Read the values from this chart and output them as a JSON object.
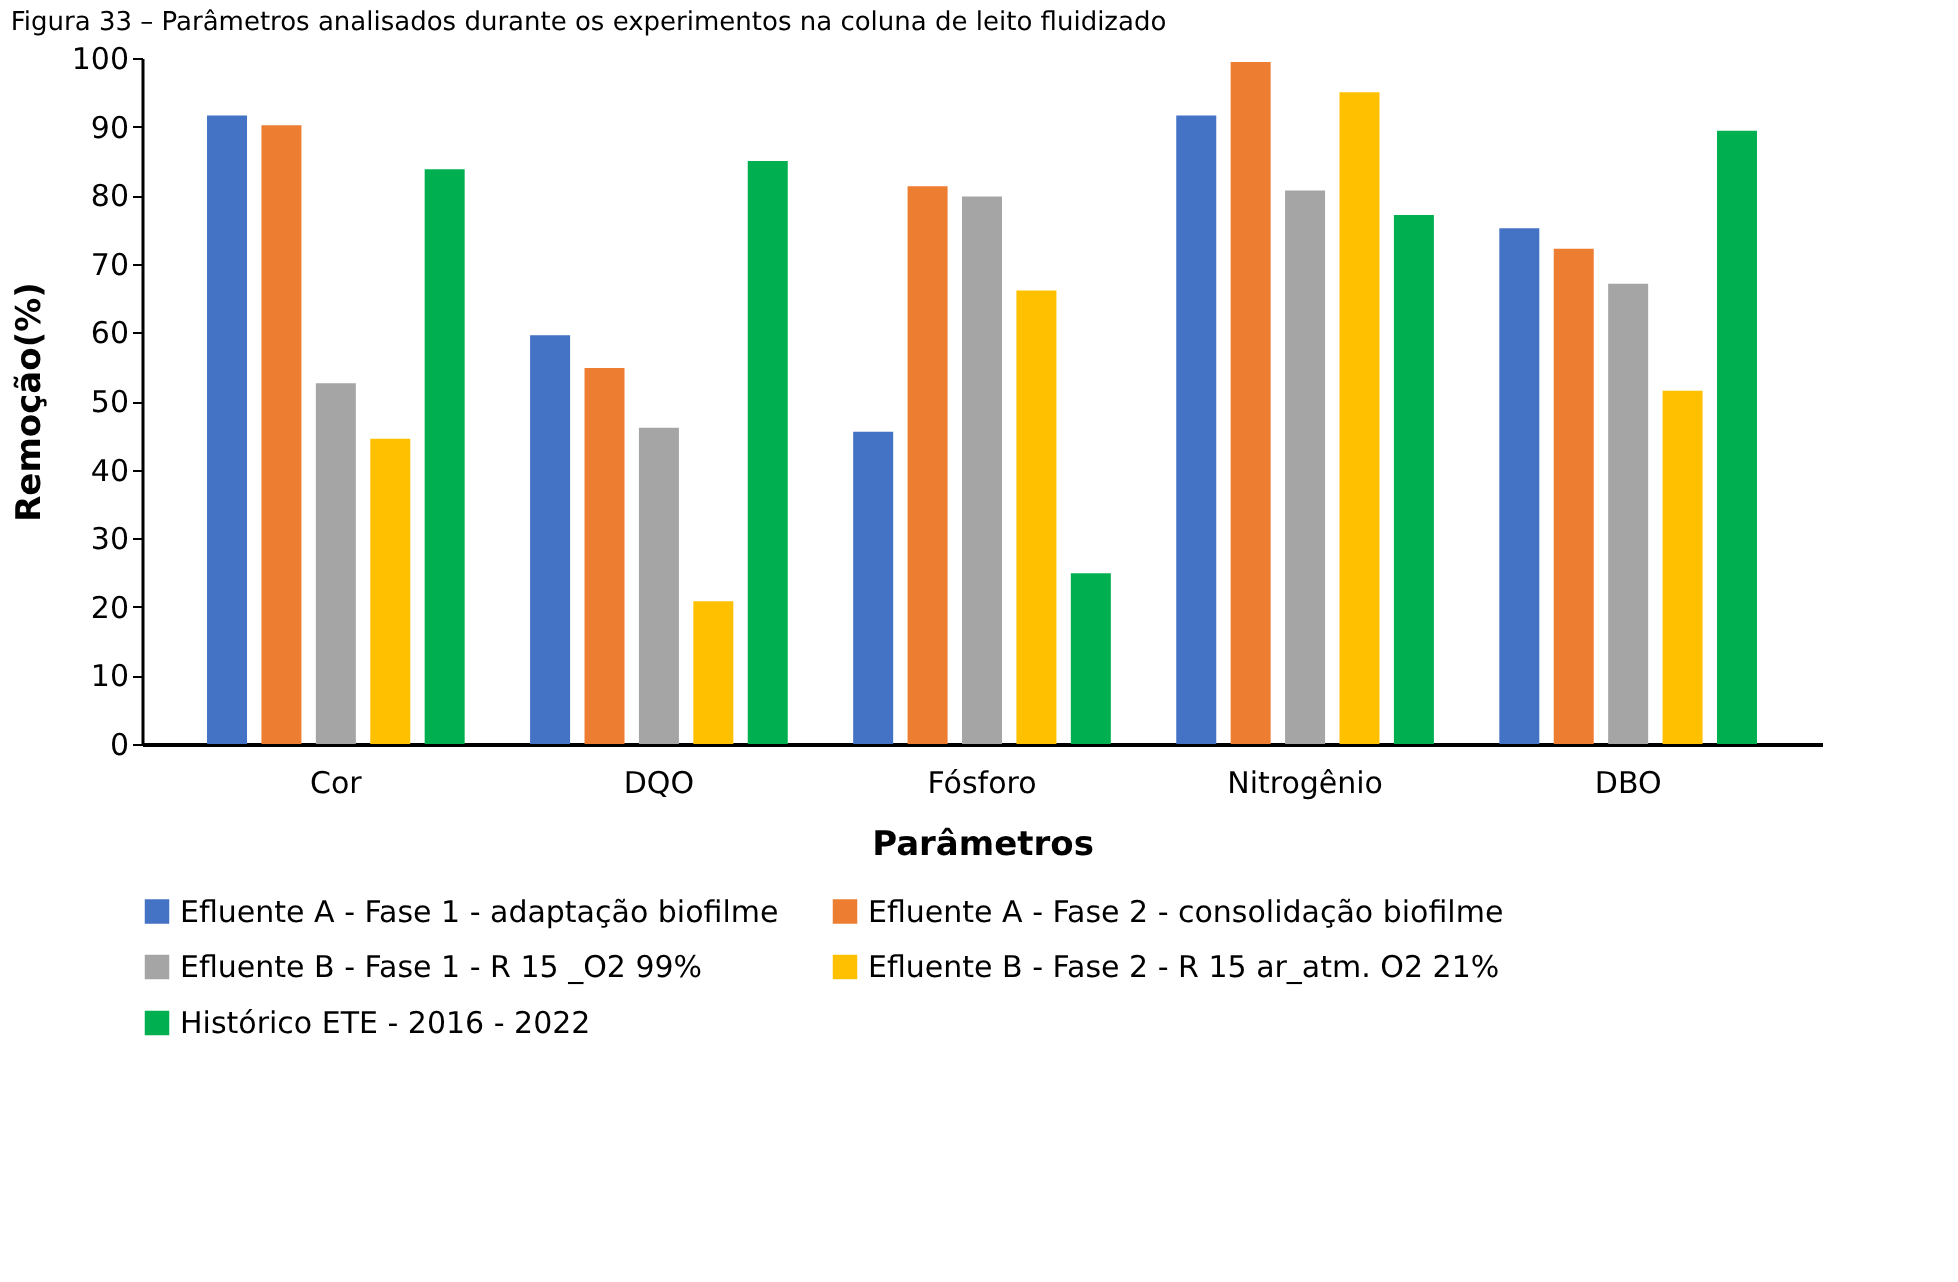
{
  "chart_data": {
    "type": "bar",
    "title": "Figura 33 – Parâmetros analisados durante os experimentos na coluna de leito fluidizado",
    "xlabel": "Parâmetros",
    "ylabel": "Remoção(%)",
    "categories": [
      "Cor",
      "DQO",
      "Fósforo",
      "Nitrogênio",
      "DBO"
    ],
    "series": [
      {
        "name": "Efluente A - Fase 1 - adaptação biofilme",
        "color": "#4472c4",
        "values": [
          91.6,
          59.6,
          45.5,
          91.6,
          75.2
        ]
      },
      {
        "name": "Efluente A - Fase 2 - consolidação biofilme",
        "color": "#ed7d31",
        "values": [
          90.2,
          54.8,
          81.3,
          99.4,
          72.2
        ]
      },
      {
        "name": "Efluente B - Fase 1 -  R 15 _O2 99%",
        "color": "#a5a5a5",
        "values": [
          52.6,
          46.1,
          79.8,
          80.7,
          67.1
        ]
      },
      {
        "name": "Efluente B - Fase 2 - R 15 ar_atm. O2 21%",
        "color": "#ffc000",
        "values": [
          44.5,
          20.8,
          66.1,
          95.0,
          51.5
        ]
      },
      {
        "name": "Histórico  ETE - 2016 - 2022",
        "color": "#00b050",
        "values": [
          83.8,
          85.0,
          24.9,
          77.1,
          89.4
        ]
      }
    ],
    "ylim": [
      0,
      100
    ],
    "yticks": [
      0,
      10,
      20,
      30,
      40,
      50,
      60,
      70,
      80,
      90,
      100
    ],
    "grid": false,
    "legend": "bottom"
  }
}
